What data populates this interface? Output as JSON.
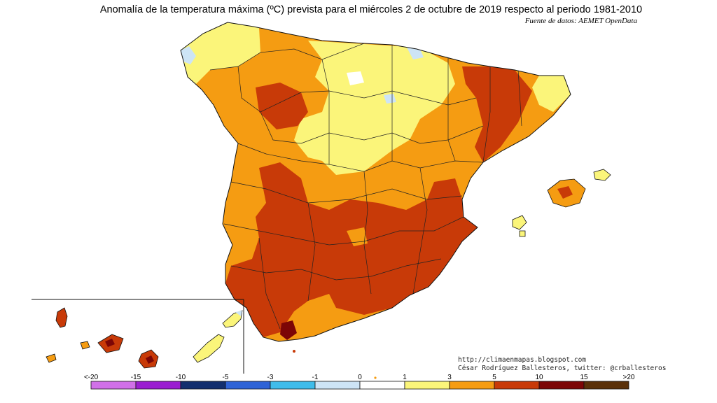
{
  "title": "Anomalía de la temperatura máxima (ºC) prevista para el miércoles 2 de octubre de 2019 respecto al periodo 1981-2010",
  "source": "Fuente de datos: AEMET OpenData",
  "credits": {
    "blog": "http://climaenmapas.blogspot.com",
    "author": "César Rodríguez Ballesteros, twitter: @crballesteros"
  },
  "legend": {
    "labels": [
      "<-20",
      "-15",
      "-10",
      "-5",
      "-3",
      "-1",
      "0",
      "1",
      "3",
      "5",
      "10",
      "15",
      ">20"
    ],
    "colors": [
      "#d070e8",
      "#9a1fd0",
      "#132f6e",
      "#2f63d6",
      "#3fbcea",
      "#cde4f6",
      "#ffffff",
      "#fbf57a",
      "#f59c12",
      "#c83a08",
      "#7c0606",
      "#5a3008"
    ]
  },
  "map_colors": {
    "pale_yellow": "#fbf57a",
    "orange": "#f59c12",
    "red": "#c83a08",
    "dark_red": "#7c0606",
    "light_blue": "#cde4f6",
    "white": "#ffffff"
  }
}
